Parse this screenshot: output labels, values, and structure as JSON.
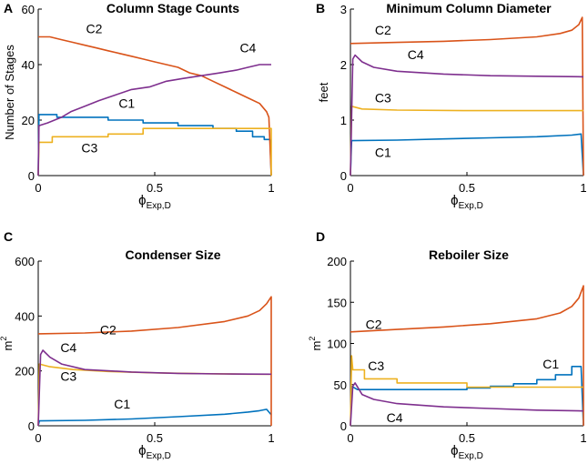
{
  "chart_data": [
    {
      "type": "line",
      "panel_label": "A",
      "title": "Column Stage Counts",
      "xlabel_main": "ϕ",
      "xlabel_sub": "Exp,D",
      "ylabel": "Number of Stages",
      "ylabel_sup": "",
      "xlim": [
        0,
        1
      ],
      "ylim": [
        0,
        60
      ],
      "xticks": [
        0,
        0.5,
        1
      ],
      "xtick_labels": [
        "0",
        "0.5",
        "1"
      ],
      "yticks": [
        0,
        20,
        40,
        60
      ],
      "ytick_labels": [
        "0",
        "20",
        "40",
        "60"
      ],
      "series": [
        {
          "name": "C1",
          "color": "#0072BD",
          "label_at": [
            0.38,
            26
          ],
          "points": [
            [
              0,
              0
            ],
            [
              0.003,
              22
            ],
            [
              0.08,
              22
            ],
            [
              0.08,
              21
            ],
            [
              0.3,
              21
            ],
            [
              0.3,
              20
            ],
            [
              0.45,
              20
            ],
            [
              0.45,
              19
            ],
            [
              0.6,
              19
            ],
            [
              0.6,
              18
            ],
            [
              0.75,
              18
            ],
            [
              0.75,
              17
            ],
            [
              0.85,
              17
            ],
            [
              0.85,
              16
            ],
            [
              0.92,
              16
            ],
            [
              0.92,
              14
            ],
            [
              0.97,
              14
            ],
            [
              0.97,
              13
            ],
            [
              0.995,
              13
            ],
            [
              1,
              0
            ]
          ]
        },
        {
          "name": "C2",
          "color": "#D95319",
          "label_at": [
            0.24,
            53
          ],
          "points": [
            [
              0,
              50
            ],
            [
              0.05,
              50
            ],
            [
              0.1,
              49
            ],
            [
              0.15,
              48
            ],
            [
              0.2,
              47
            ],
            [
              0.25,
              46
            ],
            [
              0.3,
              45
            ],
            [
              0.35,
              44
            ],
            [
              0.4,
              43
            ],
            [
              0.45,
              42
            ],
            [
              0.5,
              41
            ],
            [
              0.55,
              40
            ],
            [
              0.6,
              39
            ],
            [
              0.65,
              37
            ],
            [
              0.7,
              36
            ],
            [
              0.75,
              34
            ],
            [
              0.8,
              32
            ],
            [
              0.85,
              30
            ],
            [
              0.9,
              28
            ],
            [
              0.95,
              26
            ],
            [
              0.98,
              23
            ],
            [
              0.99,
              21
            ],
            [
              1,
              0
            ]
          ]
        },
        {
          "name": "C3",
          "color": "#EDB120",
          "label_at": [
            0.22,
            10
          ],
          "points": [
            [
              0,
              0
            ],
            [
              0.003,
              12
            ],
            [
              0.06,
              12
            ],
            [
              0.06,
              14
            ],
            [
              0.3,
              14
            ],
            [
              0.3,
              15
            ],
            [
              0.45,
              15
            ],
            [
              0.45,
              17
            ],
            [
              0.6,
              17
            ],
            [
              0.6,
              17
            ],
            [
              1,
              17
            ],
            [
              1,
              0
            ]
          ]
        },
        {
          "name": "C4",
          "color": "#7E2F8E",
          "label_at": [
            0.9,
            46
          ],
          "points": [
            [
              0,
              0
            ],
            [
              0.003,
              18
            ],
            [
              0.04,
              19
            ],
            [
              0.07,
              20
            ],
            [
              0.1,
              21
            ],
            [
              0.14,
              23
            ],
            [
              0.2,
              25
            ],
            [
              0.26,
              27
            ],
            [
              0.33,
              29
            ],
            [
              0.4,
              31
            ],
            [
              0.48,
              32
            ],
            [
              0.55,
              34
            ],
            [
              0.62,
              35
            ],
            [
              0.7,
              36
            ],
            [
              0.78,
              37
            ],
            [
              0.85,
              38
            ],
            [
              0.9,
              39
            ],
            [
              0.95,
              40
            ],
            [
              1,
              40
            ]
          ]
        }
      ]
    },
    {
      "type": "line",
      "panel_label": "B",
      "title": "Minimum Column Diameter",
      "xlabel_main": "ϕ",
      "xlabel_sub": "Exp,D",
      "ylabel": "feet",
      "ylabel_sup": "",
      "xlim": [
        0,
        1
      ],
      "ylim": [
        0,
        3
      ],
      "xticks": [
        0,
        0.5,
        1
      ],
      "xtick_labels": [
        "0",
        "0.5",
        "1"
      ],
      "yticks": [
        0,
        1,
        2,
        3
      ],
      "ytick_labels": [
        "0",
        "1",
        "2",
        "3"
      ],
      "series": [
        {
          "name": "C1",
          "color": "#0072BD",
          "label_at": [
            0.14,
            0.42
          ],
          "points": [
            [
              0,
              0
            ],
            [
              0.005,
              0.63
            ],
            [
              0.2,
              0.64
            ],
            [
              0.4,
              0.66
            ],
            [
              0.6,
              0.68
            ],
            [
              0.8,
              0.7
            ],
            [
              0.95,
              0.73
            ],
            [
              0.99,
              0.75
            ],
            [
              1,
              0
            ]
          ]
        },
        {
          "name": "C2",
          "color": "#D95319",
          "label_at": [
            0.14,
            2.62
          ],
          "points": [
            [
              0,
              2.38
            ],
            [
              0.2,
              2.4
            ],
            [
              0.4,
              2.42
            ],
            [
              0.6,
              2.45
            ],
            [
              0.8,
              2.5
            ],
            [
              0.9,
              2.56
            ],
            [
              0.95,
              2.62
            ],
            [
              0.98,
              2.72
            ],
            [
              0.995,
              2.85
            ],
            [
              1,
              0
            ]
          ]
        },
        {
          "name": "C3",
          "color": "#EDB120",
          "label_at": [
            0.14,
            1.4
          ],
          "points": [
            [
              0,
              0
            ],
            [
              0.005,
              1.25
            ],
            [
              0.05,
              1.2
            ],
            [
              0.2,
              1.18
            ],
            [
              0.5,
              1.17
            ],
            [
              1,
              1.17
            ]
          ]
        },
        {
          "name": "C4",
          "color": "#7E2F8E",
          "label_at": [
            0.28,
            2.18
          ],
          "points": [
            [
              0,
              0
            ],
            [
              0.01,
              2.1
            ],
            [
              0.02,
              2.17
            ],
            [
              0.05,
              2.05
            ],
            [
              0.1,
              1.95
            ],
            [
              0.2,
              1.88
            ],
            [
              0.4,
              1.83
            ],
            [
              0.6,
              1.8
            ],
            [
              0.8,
              1.79
            ],
            [
              1,
              1.78
            ]
          ]
        }
      ]
    },
    {
      "type": "line",
      "panel_label": "C",
      "title": "Condenser Size",
      "xlabel_main": "ϕ",
      "xlabel_sub": "Exp,D",
      "ylabel": "m",
      "ylabel_sup": "2",
      "xlim": [
        0,
        1
      ],
      "ylim": [
        0,
        600
      ],
      "xticks": [
        0,
        0.5,
        1
      ],
      "xtick_labels": [
        "0",
        "0.5",
        "1"
      ],
      "yticks": [
        0,
        200,
        400,
        600
      ],
      "ytick_labels": [
        "0",
        "200",
        "400",
        "600"
      ],
      "series": [
        {
          "name": "C1",
          "color": "#0072BD",
          "label_at": [
            0.36,
            80
          ],
          "points": [
            [
              0,
              0
            ],
            [
              0.005,
              18
            ],
            [
              0.2,
              20
            ],
            [
              0.4,
              25
            ],
            [
              0.6,
              33
            ],
            [
              0.8,
              42
            ],
            [
              0.9,
              50
            ],
            [
              0.95,
              55
            ],
            [
              0.98,
              60
            ],
            [
              1,
              40
            ]
          ]
        },
        {
          "name": "C2",
          "color": "#D95319",
          "label_at": [
            0.3,
            350
          ],
          "points": [
            [
              0,
              335
            ],
            [
              0.2,
              338
            ],
            [
              0.4,
              345
            ],
            [
              0.6,
              358
            ],
            [
              0.8,
              380
            ],
            [
              0.9,
              400
            ],
            [
              0.95,
              420
            ],
            [
              0.98,
              445
            ],
            [
              1,
              470
            ],
            [
              1,
              0
            ]
          ]
        },
        {
          "name": "C3",
          "color": "#EDB120",
          "label_at": [
            0.13,
            180
          ],
          "points": [
            [
              0,
              0
            ],
            [
              0.005,
              225
            ],
            [
              0.05,
              215
            ],
            [
              0.15,
              205
            ],
            [
              0.3,
              198
            ],
            [
              0.5,
              193
            ],
            [
              0.7,
              190
            ],
            [
              0.9,
              188
            ],
            [
              1,
              188
            ]
          ]
        },
        {
          "name": "C4",
          "color": "#7E2F8E",
          "label_at": [
            0.13,
            285
          ],
          "points": [
            [
              0,
              0
            ],
            [
              0.01,
              260
            ],
            [
              0.02,
              275
            ],
            [
              0.05,
              250
            ],
            [
              0.1,
              225
            ],
            [
              0.2,
              205
            ],
            [
              0.4,
              196
            ],
            [
              0.6,
              191
            ],
            [
              0.8,
              189
            ],
            [
              1,
              188
            ]
          ]
        }
      ]
    },
    {
      "type": "line",
      "panel_label": "D",
      "title": "Reboiler Size",
      "xlabel_main": "ϕ",
      "xlabel_sub": "Exp,D",
      "ylabel": "m",
      "ylabel_sup": "2",
      "xlim": [
        0,
        1
      ],
      "ylim": [
        0,
        200
      ],
      "xticks": [
        0,
        0.5,
        1
      ],
      "xtick_labels": [
        "0",
        "0.5",
        "1"
      ],
      "yticks": [
        0,
        50,
        100,
        150,
        200
      ],
      "ytick_labels": [
        "0",
        "50",
        "100",
        "150",
        "200"
      ],
      "series": [
        {
          "name": "C1",
          "color": "#0072BD",
          "label_at": [
            0.86,
            75
          ],
          "points": [
            [
              0,
              0
            ],
            [
              0.005,
              48
            ],
            [
              0.03,
              44
            ],
            [
              0.5,
              44
            ],
            [
              0.5,
              46
            ],
            [
              0.6,
              46
            ],
            [
              0.6,
              48
            ],
            [
              0.7,
              48
            ],
            [
              0.7,
              51
            ],
            [
              0.8,
              51
            ],
            [
              0.8,
              56
            ],
            [
              0.88,
              56
            ],
            [
              0.88,
              62
            ],
            [
              0.95,
              62
            ],
            [
              0.95,
              72
            ],
            [
              0.99,
              72
            ],
            [
              1,
              0
            ]
          ]
        },
        {
          "name": "C2",
          "color": "#D95319",
          "label_at": [
            0.1,
            123
          ],
          "points": [
            [
              0,
              114
            ],
            [
              0.2,
              117
            ],
            [
              0.4,
              120
            ],
            [
              0.6,
              124
            ],
            [
              0.8,
              130
            ],
            [
              0.9,
              137
            ],
            [
              0.95,
              145
            ],
            [
              0.98,
              155
            ],
            [
              1,
              170
            ],
            [
              1,
              0
            ]
          ]
        },
        {
          "name": "C3",
          "color": "#EDB120",
          "label_at": [
            0.11,
            73
          ],
          "points": [
            [
              0,
              0
            ],
            [
              0.005,
              85
            ],
            [
              0.01,
              68
            ],
            [
              0.06,
              68
            ],
            [
              0.06,
              57
            ],
            [
              0.2,
              57
            ],
            [
              0.2,
              52
            ],
            [
              0.5,
              52
            ],
            [
              0.5,
              47
            ],
            [
              1,
              47
            ]
          ]
        },
        {
          "name": "C4",
          "color": "#7E2F8E",
          "label_at": [
            0.19,
            10
          ],
          "points": [
            [
              0,
              0
            ],
            [
              0.01,
              48
            ],
            [
              0.02,
              52
            ],
            [
              0.05,
              38
            ],
            [
              0.1,
              32
            ],
            [
              0.2,
              27
            ],
            [
              0.4,
              23
            ],
            [
              0.6,
              21
            ],
            [
              0.8,
              19
            ],
            [
              1,
              18
            ]
          ]
        }
      ]
    }
  ]
}
